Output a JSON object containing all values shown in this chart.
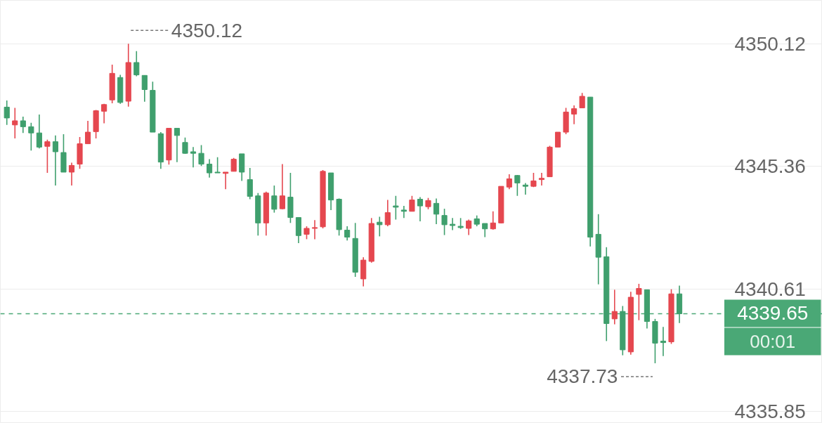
{
  "chart_data": {
    "type": "candlestick",
    "categories": [
      null,
      null,
      null,
      null,
      null,
      null,
      null,
      null,
      null,
      null,
      null,
      null,
      null,
      null,
      null,
      null,
      null,
      null,
      null,
      null,
      null,
      null,
      null,
      null,
      null,
      null,
      null,
      null,
      null,
      null,
      null,
      null,
      null,
      null,
      null,
      null,
      null,
      null,
      null,
      null,
      null,
      null,
      null,
      null,
      null,
      null,
      null,
      null,
      null,
      null,
      null,
      null,
      null,
      null,
      null,
      null,
      null,
      null,
      null,
      null,
      null,
      null,
      null,
      null,
      null,
      null,
      null,
      null,
      null,
      null,
      null,
      null,
      null,
      null,
      null,
      null,
      null,
      null,
      null,
      null,
      null,
      null,
      null,
      null
    ],
    "ohlc": [
      [
        4347.66,
        4347.92,
        4346.97,
        4347.24
      ],
      [
        4346.97,
        4347.63,
        4346.45,
        4347.13
      ],
      [
        4347.13,
        4347.29,
        4346.66,
        4346.9
      ],
      [
        4346.9,
        4347.05,
        4345.98,
        4346.66
      ],
      [
        4346.66,
        4347.37,
        4346.06,
        4346.11
      ],
      [
        4346.14,
        4346.4,
        4345.11,
        4346.32
      ],
      [
        4346.32,
        4346.56,
        4344.62,
        4345.93
      ],
      [
        4345.9,
        4346.61,
        4345.14,
        4345.14
      ],
      [
        4345.14,
        4345.51,
        4344.62,
        4345.4
      ],
      [
        4345.45,
        4346.5,
        4345.27,
        4346.24
      ],
      [
        4346.24,
        4347.13,
        4346.24,
        4346.69
      ],
      [
        4346.71,
        4347.55,
        4346.45,
        4347.52
      ],
      [
        4347.5,
        4347.79,
        4347.03,
        4347.76
      ],
      [
        4347.94,
        4349.31,
        4347.81,
        4348.97
      ],
      [
        4348.81,
        4348.91,
        4347.79,
        4347.84
      ],
      [
        4347.89,
        4350.12,
        4347.68,
        4349.39
      ],
      [
        4349.39,
        4349.83,
        4348.86,
        4348.91
      ],
      [
        4348.89,
        4348.89,
        4347.87,
        4348.34
      ],
      [
        4348.31,
        4348.65,
        4346.69,
        4346.69
      ],
      [
        4346.63,
        4346.69,
        4345.27,
        4345.53
      ],
      [
        4345.61,
        4346.84,
        4345.43,
        4346.84
      ],
      [
        4346.84,
        4346.84,
        4345.53,
        4346.56
      ],
      [
        4346.29,
        4346.48,
        4345.85,
        4345.87
      ],
      [
        4345.93,
        4346.11,
        4345.32,
        4345.87
      ],
      [
        4345.87,
        4346.19,
        4345.38,
        4345.45
      ],
      [
        4345.45,
        4345.64,
        4344.93,
        4345.11
      ],
      [
        4345.14,
        4345.72,
        4345.11,
        4345.11
      ],
      [
        4345.09,
        4345.14,
        4344.48,
        4345.14
      ],
      [
        4345.17,
        4345.69,
        4345.17,
        4345.64
      ],
      [
        4345.85,
        4345.85,
        4344.8,
        4345.14
      ],
      [
        4344.85,
        4345.3,
        4344.09,
        4344.2
      ],
      [
        4344.22,
        4344.33,
        4342.68,
        4343.17
      ],
      [
        4343.17,
        4344.38,
        4342.68,
        4344.33
      ],
      [
        4344.22,
        4344.62,
        4343.57,
        4343.7
      ],
      [
        4343.72,
        4345.45,
        4343.7,
        4344.22
      ],
      [
        4344.17,
        4345.11,
        4343.17,
        4343.38
      ],
      [
        4343.38,
        4343.38,
        4342.39,
        4342.68
      ],
      [
        4342.73,
        4343.04,
        4342.54,
        4342.96
      ],
      [
        4342.96,
        4343.28,
        4342.54,
        4342.99
      ],
      [
        4343.02,
        4345.22,
        4342.96,
        4345.17
      ],
      [
        4345.11,
        4345.11,
        4343.67,
        4344.06
      ],
      [
        4344.09,
        4344.12,
        4342.68,
        4342.91
      ],
      [
        4342.89,
        4343.04,
        4342.49,
        4342.62
      ],
      [
        4342.57,
        4343.17,
        4341.08,
        4341.26
      ],
      [
        4341.0,
        4341.84,
        4340.71,
        4341.73
      ],
      [
        4341.68,
        4343.36,
        4341.63,
        4343.15
      ],
      [
        4343.2,
        4343.41,
        4342.65,
        4343.1
      ],
      [
        4343.1,
        4344.06,
        4343.04,
        4343.57
      ],
      [
        4343.83,
        4344.22,
        4343.3,
        4343.78
      ],
      [
        4343.67,
        4343.83,
        4343.36,
        4343.62
      ],
      [
        4343.62,
        4344.22,
        4343.62,
        4344.06
      ],
      [
        4344.09,
        4344.17,
        4343.23,
        4343.83
      ],
      [
        4343.8,
        4344.14,
        4343.7,
        4344.04
      ],
      [
        4343.93,
        4344.12,
        4343.12,
        4343.51
      ],
      [
        4343.46,
        4343.72,
        4342.7,
        4343.1
      ],
      [
        4343.12,
        4343.36,
        4342.89,
        4343.07
      ],
      [
        4343.04,
        4343.36,
        4342.94,
        4342.99
      ],
      [
        4342.96,
        4343.3,
        4342.7,
        4343.25
      ],
      [
        4343.33,
        4343.46,
        4343.04,
        4343.12
      ],
      [
        4343.15,
        4343.15,
        4342.62,
        4342.94
      ],
      [
        4342.94,
        4343.62,
        4342.91,
        4343.17
      ],
      [
        4343.17,
        4344.59,
        4343.15,
        4344.59
      ],
      [
        4344.56,
        4345.06,
        4344.48,
        4344.88
      ],
      [
        4345.01,
        4345.03,
        4344.22,
        4344.72
      ],
      [
        4344.64,
        4344.72,
        4344.27,
        4344.59
      ],
      [
        4344.59,
        4345.11,
        4344.56,
        4344.8
      ],
      [
        4344.85,
        4345.11,
        4344.62,
        4344.9
      ],
      [
        4344.96,
        4346.16,
        4344.96,
        4346.11
      ],
      [
        4346.11,
        4346.69,
        4346.11,
        4346.69
      ],
      [
        4346.69,
        4347.63,
        4346.61,
        4347.47
      ],
      [
        4347.39,
        4347.73,
        4347.0,
        4347.6
      ],
      [
        4347.63,
        4348.21,
        4347.63,
        4348.08
      ],
      [
        4348.05,
        4348.05,
        4342.26,
        4342.62
      ],
      [
        4342.73,
        4343.51,
        4340.79,
        4341.84
      ],
      [
        4341.86,
        4342.23,
        4338.59,
        4339.27
      ],
      [
        4339.45,
        4340.58,
        4339.24,
        4339.74
      ],
      [
        4339.74,
        4339.95,
        4338.04,
        4338.25
      ],
      [
        4338.17,
        4340.5,
        4338.06,
        4340.29
      ],
      [
        4340.4,
        4340.81,
        4339.4,
        4340.63
      ],
      [
        4340.58,
        4340.58,
        4339.08,
        4339.35
      ],
      [
        4339.35,
        4339.45,
        4337.73,
        4338.51
      ],
      [
        4338.59,
        4339.14,
        4338.01,
        4338.53
      ],
      [
        4338.56,
        4340.6,
        4338.48,
        4340.42
      ],
      [
        4340.42,
        4340.74,
        4339.29,
        4339.65
      ]
    ],
    "colors": [
      "#3f9f6d",
      "#e5474f",
      "#3f9f6d",
      "#3f9f6d",
      "#3f9f6d",
      "#e5474f",
      "#3f9f6d",
      "#3f9f6d",
      "#e5474f",
      "#e5474f",
      "#e5474f",
      "#e5474f",
      "#e5474f",
      "#e5474f",
      "#3f9f6d",
      "#e5474f",
      "#3f9f6d",
      "#3f9f6d",
      "#3f9f6d",
      "#3f9f6d",
      "#e5474f",
      "#3f9f6d",
      "#3f9f6d",
      "#3f9f6d",
      "#3f9f6d",
      "#3f9f6d",
      "#3f9f6d",
      "#e5474f",
      "#e5474f",
      "#3f9f6d",
      "#3f9f6d",
      "#3f9f6d",
      "#e5474f",
      "#3f9f6d",
      "#e5474f",
      "#3f9f6d",
      "#3f9f6d",
      "#e5474f",
      "#e5474f",
      "#e5474f",
      "#3f9f6d",
      "#3f9f6d",
      "#3f9f6d",
      "#3f9f6d",
      "#e5474f",
      "#e5474f",
      "#3f9f6d",
      "#e5474f",
      "#3f9f6d",
      "#3f9f6d",
      "#e5474f",
      "#3f9f6d",
      "#e5474f",
      "#3f9f6d",
      "#3f9f6d",
      "#3f9f6d",
      "#3f9f6d",
      "#e5474f",
      "#3f9f6d",
      "#3f9f6d",
      "#e5474f",
      "#e5474f",
      "#e5474f",
      "#3f9f6d",
      "#3f9f6d",
      "#e5474f",
      "#e5474f",
      "#e5474f",
      "#e5474f",
      "#e5474f",
      "#e5474f",
      "#e5474f",
      "#3f9f6d",
      "#3f9f6d",
      "#3f9f6d",
      "#e5474f",
      "#3f9f6d",
      "#e5474f",
      "#e5474f",
      "#3f9f6d",
      "#3f9f6d",
      "#3f9f6d",
      "#e5474f",
      "#3f9f6d"
    ],
    "ylim": [
      4335.4,
      4351.8
    ],
    "yticks": [
      4335.85,
      4340.61,
      4345.36,
      4350.12
    ],
    "grid": "y",
    "tick_labels": "y",
    "ref_lines": [
      {
        "axis": "y",
        "value": 4339.65,
        "label": "4339.65",
        "color": "#4aa876",
        "line_style": "dashed"
      }
    ],
    "annotations": [
      "4350.12",
      "4337.73",
      "00:01"
    ]
  }
}
